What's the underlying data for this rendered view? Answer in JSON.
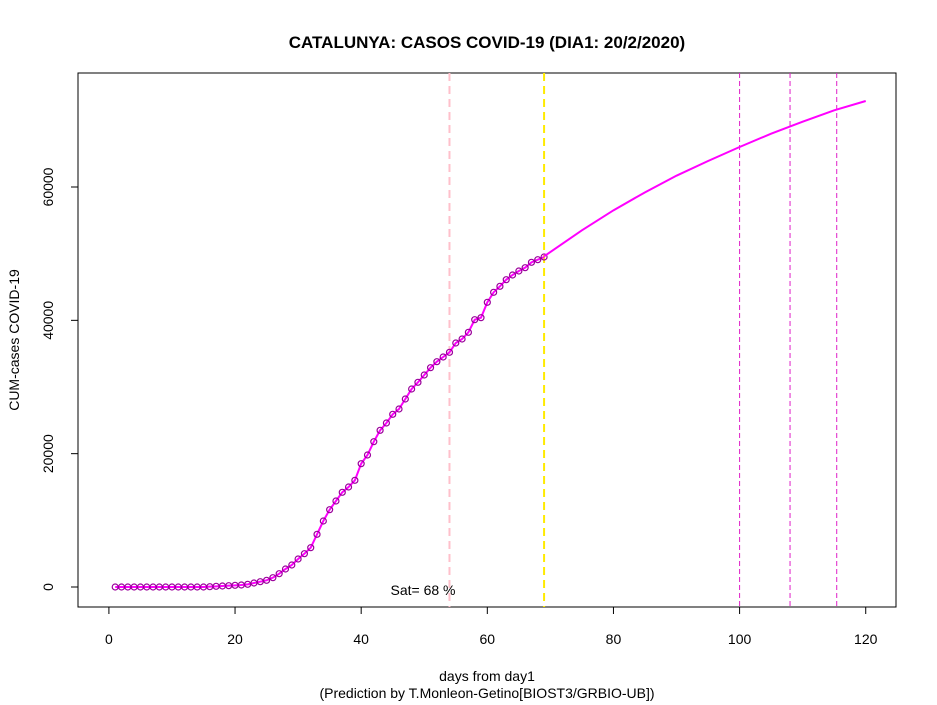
{
  "chart_data": {
    "type": "line",
    "title": "CATALUNYA: CASOS COVID-19 (DIA1: 20/2/2020)",
    "x_label": "days from day1",
    "caption": "(Prediction by T.Monleon-Getino[BIOST3/GRBIO-UB])",
    "y_label": "CUM-cases COVID-19",
    "annotation": "Sat= 68 %",
    "xlim": [
      -4.9,
      124.8
    ],
    "ylim": [
      -3000,
      77100
    ],
    "xticks": [
      0,
      20,
      40,
      60,
      80,
      100,
      120
    ],
    "yticks": [
      0,
      20000,
      40000,
      60000
    ],
    "series": [
      {
        "color": "#ff00ff",
        "marker_color": "#9a009a",
        "markers": true,
        "x": [
          1,
          2,
          3,
          4,
          5,
          6,
          7,
          8,
          9,
          10,
          11,
          12,
          13,
          14,
          15,
          16,
          17,
          18,
          19,
          20,
          21,
          22,
          23,
          24,
          25,
          26,
          27,
          28,
          29,
          30,
          31,
          32,
          33,
          34,
          35,
          36,
          37,
          38,
          39,
          40,
          41,
          42,
          43,
          44,
          45,
          46,
          47,
          48,
          49,
          50,
          51,
          52,
          53,
          54,
          55,
          56,
          57,
          58,
          59,
          60,
          61,
          62,
          63,
          64,
          65,
          66,
          67,
          68,
          69
        ],
        "values": [
          0,
          0,
          0,
          0,
          0,
          0,
          0,
          0,
          0,
          0,
          0,
          0,
          0,
          0,
          0,
          50,
          100,
          150,
          200,
          250,
          300,
          400,
          600,
          800,
          1000,
          1400,
          2000,
          2700,
          3300,
          4200,
          5000,
          5900,
          7900,
          9900,
          11600,
          12900,
          14200,
          15000,
          16000,
          18500,
          19800,
          21800,
          23500,
          24600,
          25900,
          26700,
          28200,
          29700,
          30700,
          31800,
          32900,
          33800,
          34500,
          35200,
          36600,
          37200,
          38200,
          40100,
          40400,
          42700,
          44200,
          45100,
          46100,
          46800,
          47400,
          47900,
          48700,
          49100,
          49500
        ]
      },
      {
        "color": "#ff00ff",
        "markers": false,
        "x": [
          69,
          75,
          80,
          85,
          90,
          95,
          100,
          105,
          110,
          115,
          120
        ],
        "values": [
          49600,
          53500,
          56500,
          59200,
          61700,
          63900,
          66000,
          68000,
          69800,
          71500,
          72900
        ]
      }
    ],
    "vlines": [
      {
        "value": 54,
        "color": "#ffc0cb",
        "dash": "8,5",
        "width": 2
      },
      {
        "value": 69,
        "color": "#ffea00",
        "dash": "8,5",
        "width": 2
      },
      {
        "value": 100,
        "color": "#e020c8",
        "dash": "5,3",
        "width": 1
      },
      {
        "value": 108,
        "color": "#e020c8",
        "dash": "5,3",
        "width": 1
      },
      {
        "value": 115.4,
        "color": "#e020c8",
        "dash": "5,3",
        "width": 1
      }
    ]
  }
}
